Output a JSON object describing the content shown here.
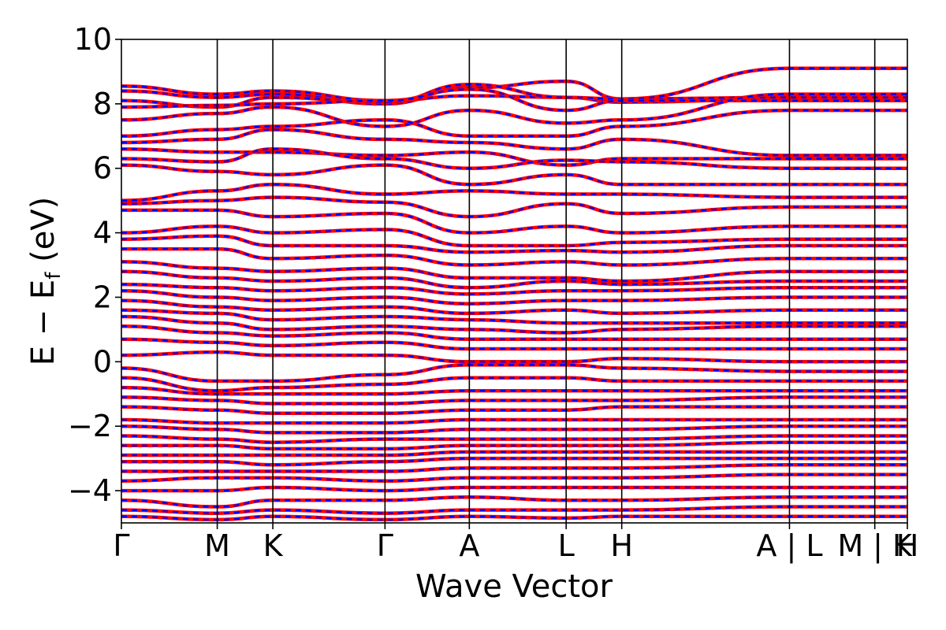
{
  "chart_data": {
    "type": "line",
    "title": "",
    "xlabel": "Wave Vector",
    "ylabel": {
      "prefix": "E − E",
      "subscript": "f",
      "suffix": " (eV)"
    },
    "ylim": [
      -5,
      10
    ],
    "yticks": [
      -4,
      -2,
      0,
      2,
      4,
      6,
      8,
      10
    ],
    "ytick_labels": [
      "−4",
      "−2",
      "0",
      "2",
      "4",
      "6",
      "8",
      "10"
    ],
    "xlim": [
      0,
      8.2
    ],
    "kpath_positions": [
      0,
      1.0,
      1.58,
      2.75,
      3.63,
      4.64,
      5.22,
      6.97,
      7.86,
      8.2
    ],
    "kpath_labels": [
      "Γ",
      "M",
      "K",
      "Γ",
      "A",
      "L",
      "H",
      "A | L",
      "M | K",
      "H"
    ],
    "vertical_lines_at": [
      1.0,
      1.58,
      2.75,
      3.63,
      4.64,
      5.22,
      6.97,
      7.86
    ],
    "grid": false,
    "legend": "none",
    "colors": {
      "series_a": "#ff0000",
      "series_b": "#0000ff",
      "axis": "#000000"
    },
    "series": [
      {
        "values": [
          8.55,
          8.3,
          8.4,
          8.1,
          8.25,
          8.2,
          8.05,
          8.15
        ]
      },
      {
        "values": [
          8.4,
          8.2,
          8.3,
          8.0,
          8.5,
          8.7,
          8.15,
          8.2
        ]
      },
      {
        "values": [
          8.1,
          7.9,
          8.2,
          8.05,
          8.6,
          8.2,
          8.15,
          9.1
        ]
      },
      {
        "values": [
          7.9,
          7.95,
          8.0,
          8.1,
          8.45,
          7.8,
          8.1,
          8.1
        ]
      },
      {
        "values": [
          7.5,
          7.7,
          7.9,
          7.3,
          7.8,
          7.4,
          7.5,
          8.3
        ]
      },
      {
        "values": [
          7.0,
          7.2,
          7.3,
          7.5,
          7.0,
          7.0,
          7.3,
          7.8
        ]
      },
      {
        "values": [
          6.8,
          6.9,
          7.2,
          6.9,
          6.8,
          6.6,
          6.9,
          6.4
        ]
      },
      {
        "values": [
          6.6,
          6.5,
          6.5,
          6.4,
          6.5,
          6.1,
          6.3,
          6.3
        ]
      },
      {
        "values": [
          6.3,
          6.2,
          6.6,
          6.3,
          6.0,
          6.25,
          6.2,
          6.0
        ]
      },
      {
        "values": [
          6.1,
          5.9,
          5.8,
          6.1,
          5.5,
          5.8,
          5.5,
          5.5
        ]
      },
      {
        "values": [
          5.0,
          5.3,
          5.5,
          5.2,
          5.3,
          5.2,
          5.2,
          5.1
        ]
      },
      {
        "values": [
          4.9,
          5.0,
          5.1,
          4.95,
          4.5,
          4.9,
          4.6,
          4.8
        ]
      },
      {
        "values": [
          4.7,
          4.7,
          4.5,
          4.6,
          4.0,
          4.2,
          4.0,
          4.2
        ]
      },
      {
        "values": [
          4.0,
          4.2,
          4.0,
          4.1,
          3.6,
          3.6,
          3.7,
          3.8
        ]
      },
      {
        "values": [
          3.8,
          3.9,
          3.6,
          3.6,
          3.4,
          3.45,
          3.4,
          3.6
        ]
      },
      {
        "values": [
          3.5,
          3.5,
          3.2,
          3.3,
          3.0,
          3.1,
          3.0,
          3.2
        ]
      },
      {
        "values": [
          3.1,
          2.9,
          2.8,
          2.9,
          2.6,
          2.6,
          2.5,
          2.8
        ]
      },
      {
        "values": [
          2.8,
          2.6,
          2.5,
          2.6,
          2.3,
          2.5,
          2.4,
          2.5
        ]
      },
      {
        "values": [
          2.4,
          2.3,
          2.2,
          2.3,
          2.1,
          2.2,
          2.2,
          2.3
        ]
      },
      {
        "values": [
          2.2,
          2.0,
          1.9,
          2.0,
          1.8,
          1.9,
          1.9,
          2.0
        ]
      },
      {
        "values": [
          1.9,
          1.7,
          1.6,
          1.7,
          1.5,
          1.6,
          1.5,
          1.6
        ]
      },
      {
        "values": [
          1.6,
          1.5,
          1.3,
          1.4,
          1.3,
          1.2,
          1.2,
          1.2
        ]
      },
      {
        "values": [
          1.4,
          1.2,
          1.0,
          1.1,
          1.0,
          0.9,
          1.0,
          1.1
        ]
      },
      {
        "values": [
          1.1,
          0.9,
          0.8,
          0.9,
          0.7,
          0.7,
          0.7,
          0.7
        ]
      },
      {
        "values": [
          0.7,
          0.6,
          0.5,
          0.6,
          0.4,
          0.4,
          0.4,
          0.4
        ]
      },
      {
        "values": [
          0.2,
          0.3,
          0.2,
          0.2,
          0.0,
          0.0,
          0.1,
          0.0
        ]
      },
      {
        "values": [
          -0.2,
          -0.6,
          -0.6,
          -0.4,
          -0.1,
          -0.1,
          -0.2,
          -0.3
        ]
      },
      {
        "values": [
          -0.5,
          -0.9,
          -0.8,
          -0.7,
          -0.5,
          -0.5,
          -0.6,
          -0.6
        ]
      },
      {
        "values": [
          -0.8,
          -1.0,
          -1.0,
          -1.0,
          -0.9,
          -0.9,
          -0.9,
          -0.9
        ]
      },
      {
        "values": [
          -1.1,
          -1.2,
          -1.3,
          -1.3,
          -1.2,
          -1.2,
          -1.2,
          -1.1
        ]
      },
      {
        "values": [
          -1.4,
          -1.5,
          -1.6,
          -1.6,
          -1.5,
          -1.5,
          -1.4,
          -1.4
        ]
      },
      {
        "values": [
          -1.8,
          -1.9,
          -1.9,
          -1.9,
          -1.8,
          -1.8,
          -1.8,
          -1.8
        ]
      },
      {
        "values": [
          -2.0,
          -2.1,
          -2.2,
          -2.2,
          -2.1,
          -2.1,
          -2.1,
          -2.0
        ]
      },
      {
        "values": [
          -2.3,
          -2.4,
          -2.5,
          -2.4,
          -2.4,
          -2.4,
          -2.4,
          -2.3
        ]
      },
      {
        "values": [
          -2.6,
          -2.6,
          -2.7,
          -2.7,
          -2.6,
          -2.6,
          -2.6,
          -2.5
        ]
      },
      {
        "values": [
          -2.9,
          -2.9,
          -2.9,
          -2.9,
          -2.8,
          -2.8,
          -2.8,
          -2.8
        ]
      },
      {
        "values": [
          -3.1,
          -3.1,
          -3.2,
          -3.1,
          -3.0,
          -3.0,
          -3.0,
          -3.0
        ]
      },
      {
        "values": [
          -3.4,
          -3.4,
          -3.4,
          -3.4,
          -3.3,
          -3.3,
          -3.3,
          -3.2
        ]
      },
      {
        "values": [
          -3.7,
          -3.6,
          -3.6,
          -3.7,
          -3.6,
          -3.6,
          -3.6,
          -3.5
        ]
      },
      {
        "values": [
          -4.0,
          -4.0,
          -3.9,
          -4.0,
          -3.9,
          -3.9,
          -3.9,
          -3.9
        ]
      },
      {
        "values": [
          -4.3,
          -4.5,
          -4.3,
          -4.3,
          -4.2,
          -4.3,
          -4.3,
          -4.2
        ]
      },
      {
        "values": [
          -4.6,
          -4.7,
          -4.6,
          -4.7,
          -4.6,
          -4.6,
          -4.6,
          -4.5
        ]
      },
      {
        "values": [
          -4.8,
          -4.9,
          -4.8,
          -4.9,
          -4.8,
          -4.85,
          -4.8,
          -4.8
        ]
      }
    ]
  }
}
